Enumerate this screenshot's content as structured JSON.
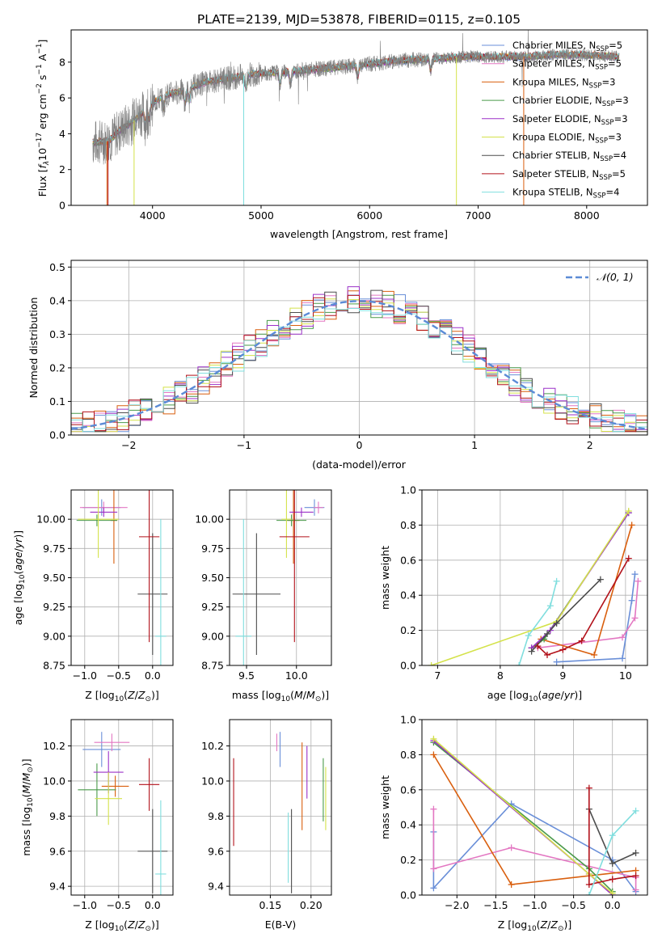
{
  "figure": {
    "title": "PLATE=2139, MJD=53878, FIBERID=0115, z=0.105"
  },
  "colors": {
    "Chabrier MILES": "#6a8fd8",
    "Salpeter MILES": "#e377c2",
    "Kroupa MILES": "#d95f0e",
    "Chabrier ELODIE": "#4a9a4a",
    "Salpeter ELODIE": "#9b30c8",
    "Kroupa ELODIE": "#d4e24a",
    "Chabrier STELIB": "#4d4d4d",
    "Salpeter STELIB": "#b2111a",
    "Kroupa STELIB": "#80dede",
    "data": "#808080",
    "normal": "#5b8bd6"
  },
  "chart_data": [
    {
      "id": "spectrum",
      "type": "line",
      "xlabel": "wavelength [Angstrom, rest frame]",
      "ylabel": "Flux [f_λ 10^-17 erg cm^-2 s^-1 A^-1]",
      "xlim": [
        3250,
        8560
      ],
      "ylim": [
        0,
        9.8
      ],
      "xticks": [
        4000,
        5000,
        6000,
        7000,
        8000
      ],
      "yticks": [
        0,
        2,
        4,
        6,
        8
      ],
      "grid": false,
      "legend_position": "top-right",
      "continuum": {
        "x": [
          3450,
          3600,
          3700,
          3800,
          3900,
          4000,
          4100,
          4200,
          4300,
          4400,
          4500,
          4700,
          4900,
          5100,
          5300,
          5500,
          5700,
          6000,
          6300,
          6600,
          6900,
          7100,
          7400,
          7700,
          8000,
          8300
        ],
        "y": [
          3.5,
          3.6,
          4.2,
          4.6,
          5.1,
          5.7,
          6.1,
          6.3,
          6.4,
          6.7,
          6.9,
          7.1,
          7.3,
          7.4,
          7.5,
          7.6,
          7.7,
          7.9,
          8.1,
          8.2,
          8.3,
          8.3,
          8.3,
          8.4,
          8.4,
          8.3
        ]
      },
      "series": [
        {
          "name": "Chabrier MILES, N_SSP=5"
        },
        {
          "name": "Salpeter MILES, N_SSP=5"
        },
        {
          "name": "Kroupa MILES, N_SSP=3"
        },
        {
          "name": "Chabrier ELODIE, N_SSP=3"
        },
        {
          "name": "Salpeter ELODIE, N_SSP=3"
        },
        {
          "name": "Kroupa ELODIE, N_SSP=3"
        },
        {
          "name": "Chabrier STELIB, N_SSP=4"
        },
        {
          "name": "Salpeter STELIB, N_SSP=5"
        },
        {
          "name": "Kroupa STELIB, N_SSP=4"
        }
      ],
      "legend_labels": [
        {
          "base": "Chabrier MILES, N",
          "sub": "SSP",
          "tail": "=5"
        },
        {
          "base": "Salpeter MILES, N",
          "sub": "SSP",
          "tail": "=5"
        },
        {
          "base": "Kroupa MILES, N",
          "sub": "SSP",
          "tail": "=3"
        },
        {
          "base": "Chabrier ELODIE, N",
          "sub": "SSP",
          "tail": "=3"
        },
        {
          "base": "Salpeter ELODIE, N",
          "sub": "SSP",
          "tail": "=3"
        },
        {
          "base": "Kroupa ELODIE, N",
          "sub": "SSP",
          "tail": "=3"
        },
        {
          "base": "Chabrier STELIB, N",
          "sub": "SSP",
          "tail": "=4"
        },
        {
          "base": "Salpeter STELIB, N",
          "sub": "SSP",
          "tail": "=5"
        },
        {
          "base": "Kroupa STELIB, N",
          "sub": "SSP",
          "tail": "=4"
        }
      ]
    },
    {
      "id": "residuals",
      "type": "histogram",
      "xlabel": "(data-model)/error",
      "ylabel": "Normed distribution",
      "xlim": [
        -2.5,
        2.5
      ],
      "ylim": [
        0,
        0.52
      ],
      "xticks": [
        -2,
        -1,
        0,
        1,
        2
      ],
      "yticks": [
        0.0,
        0.1,
        0.2,
        0.3,
        0.4,
        0.5
      ],
      "grid": true,
      "legend": "𝒩(0, 1)",
      "legend_position": "top-right",
      "bin_width": 0.1
    },
    {
      "id": "age_vs_Z",
      "type": "errorbar",
      "xlabel": "Z [log10(Z/Z⊙)]",
      "ylabel": "age [log10(age/yr)]",
      "xlim": [
        -1.2,
        0.3
      ],
      "ylim": [
        8.75,
        10.25
      ],
      "xticks": [
        -1.0,
        -0.5,
        0.0
      ],
      "yticks": [
        8.75,
        9.0,
        9.25,
        9.5,
        9.75,
        10.0
      ],
      "grid": true,
      "points": [
        {
          "label": "Chabrier MILES",
          "x": -0.75,
          "xerr": 0.28,
          "y": 10.1,
          "yerr": 0.07
        },
        {
          "label": "Salpeter MILES",
          "x": -0.72,
          "xerr": 0.35,
          "y": 10.1,
          "yerr": 0.05
        },
        {
          "label": "Kroupa MILES",
          "x": -0.57,
          "xerr": 0.05,
          "y": 9.99,
          "yerr": 0.37
        },
        {
          "label": "Chabrier ELODIE",
          "x": -0.82,
          "xerr": 0.3,
          "y": 9.99,
          "yerr": 0.05
        },
        {
          "label": "Salpeter ELODIE",
          "x": -0.72,
          "xerr": 0.2,
          "y": 10.06,
          "yerr": 0.04
        },
        {
          "label": "Kroupa ELODIE",
          "x": -0.8,
          "xerr": 0.3,
          "y": 10.0,
          "yerr": 0.33
        },
        {
          "label": "Chabrier STELIB",
          "x": 0.0,
          "xerr": 0.22,
          "y": 9.36,
          "yerr": 0.52
        },
        {
          "label": "Salpeter STELIB",
          "x": -0.05,
          "xerr": 0.15,
          "y": 9.85,
          "yerr": 0.9
        },
        {
          "label": "Kroupa STELIB",
          "x": 0.12,
          "xerr": 0.08,
          "y": 9.0,
          "yerr": 1.0
        }
      ]
    },
    {
      "id": "age_vs_mass",
      "type": "errorbar",
      "xlabel": "mass [log10(M/M⊙)]",
      "ylabel": "",
      "xlim": [
        9.33,
        10.35
      ],
      "ylim": [
        8.75,
        10.25
      ],
      "xticks": [
        9.5,
        10.0
      ],
      "yticks": [
        8.75,
        9.0,
        9.25,
        9.5,
        9.75,
        10.0
      ],
      "grid": true,
      "points": [
        {
          "label": "Chabrier MILES",
          "x": 10.18,
          "xerr": 0.1,
          "y": 10.1,
          "yerr": 0.07
        },
        {
          "label": "Salpeter MILES",
          "x": 10.22,
          "xerr": 0.05,
          "y": 10.1,
          "yerr": 0.05
        },
        {
          "label": "Kroupa MILES",
          "x": 9.97,
          "xerr": 0.06,
          "y": 9.99,
          "yerr": 0.37
        },
        {
          "label": "Chabrier ELODIE",
          "x": 9.95,
          "xerr": 0.15,
          "y": 9.99,
          "yerr": 0.05
        },
        {
          "label": "Salpeter ELODIE",
          "x": 10.05,
          "xerr": 0.12,
          "y": 10.06,
          "yerr": 0.04
        },
        {
          "label": "Kroupa ELODIE",
          "x": 9.9,
          "xerr": 0.05,
          "y": 10.0,
          "yerr": 0.33
        },
        {
          "label": "Chabrier STELIB",
          "x": 9.6,
          "xerr": 0.24,
          "y": 9.36,
          "yerr": 0.52
        },
        {
          "label": "Salpeter STELIB",
          "x": 9.98,
          "xerr": 0.15,
          "y": 9.85,
          "yerr": 0.9
        },
        {
          "label": "Kroupa STELIB",
          "x": 9.47,
          "xerr": 0.08,
          "y": 9.0,
          "yerr": 1.0
        }
      ]
    },
    {
      "id": "weights_vs_age",
      "type": "line",
      "xlabel": "age [log10(age/yr)]",
      "ylabel": "mass weight",
      "xlim": [
        6.75,
        10.35
      ],
      "ylim": [
        0,
        1.0
      ],
      "xticks": [
        7,
        8,
        9,
        10
      ],
      "yticks": [
        0.0,
        0.2,
        0.4,
        0.6,
        0.8,
        1.0
      ],
      "grid": true,
      "series": [
        {
          "name": "Chabrier MILES",
          "x": [
            8.9,
            9.95,
            10.1,
            10.15
          ],
          "y": [
            0.02,
            0.04,
            0.37,
            0.52
          ]
        },
        {
          "name": "Salpeter MILES",
          "x": [
            8.6,
            9.95,
            10.15,
            10.2
          ],
          "y": [
            0.1,
            0.16,
            0.27,
            0.48
          ]
        },
        {
          "name": "Kroupa MILES",
          "x": [
            8.65,
            9.5,
            10.1
          ],
          "y": [
            0.15,
            0.06,
            0.8
          ]
        },
        {
          "name": "Chabrier ELODIE",
          "x": [
            8.5,
            8.7,
            10.05
          ],
          "y": [
            0.1,
            0.15,
            0.87
          ]
        },
        {
          "name": "Salpeter ELODIE",
          "x": [
            8.5,
            8.8,
            10.05
          ],
          "y": [
            0.1,
            0.2,
            0.87
          ]
        },
        {
          "name": "Kroupa ELODIE",
          "x": [
            6.9,
            8.9,
            10.05
          ],
          "y": [
            0.0,
            0.25,
            0.88
          ]
        },
        {
          "name": "Chabrier STELIB",
          "x": [
            8.5,
            8.75,
            8.9,
            9.6
          ],
          "y": [
            0.08,
            0.18,
            0.24,
            0.49
          ]
        },
        {
          "name": "Salpeter STELIB",
          "x": [
            8.6,
            8.75,
            9.0,
            9.3,
            10.05
          ],
          "y": [
            0.11,
            0.06,
            0.09,
            0.14,
            0.61
          ]
        },
        {
          "name": "Kroupa STELIB",
          "x": [
            8.3,
            8.45,
            8.8,
            8.9
          ],
          "y": [
            0.0,
            0.17,
            0.34,
            0.48
          ]
        }
      ]
    },
    {
      "id": "mass_vs_Z",
      "type": "errorbar",
      "xlabel": "Z [log10(Z/Z⊙)]",
      "ylabel": "mass [log10(M/M⊙)]",
      "xlim": [
        -1.2,
        0.3
      ],
      "ylim": [
        9.35,
        10.35
      ],
      "xticks": [
        -1.0,
        -0.5,
        0.0
      ],
      "yticks": [
        9.4,
        9.6,
        9.8,
        10.0,
        10.2
      ],
      "grid": true,
      "points": [
        {
          "label": "Chabrier MILES",
          "x": -0.75,
          "xerr": 0.28,
          "y": 10.18,
          "yerr": 0.1
        },
        {
          "label": "Salpeter MILES",
          "x": -0.6,
          "xerr": 0.26,
          "y": 10.22,
          "yerr": 0.05
        },
        {
          "label": "Kroupa MILES",
          "x": -0.55,
          "xerr": 0.2,
          "y": 9.97,
          "yerr": 0.06
        },
        {
          "label": "Chabrier ELODIE",
          "x": -0.82,
          "xerr": 0.28,
          "y": 9.95,
          "yerr": 0.15
        },
        {
          "label": "Salpeter ELODIE",
          "x": -0.65,
          "xerr": 0.22,
          "y": 10.05,
          "yerr": 0.12
        },
        {
          "label": "Kroupa ELODIE",
          "x": -0.65,
          "xerr": 0.2,
          "y": 9.9,
          "yerr": 0.15
        },
        {
          "label": "Chabrier STELIB",
          "x": 0.0,
          "xerr": 0.22,
          "y": 9.6,
          "yerr": 0.24
        },
        {
          "label": "Salpeter STELIB",
          "x": -0.05,
          "xerr": 0.15,
          "y": 9.98,
          "yerr": 0.15
        },
        {
          "label": "Kroupa STELIB",
          "x": 0.12,
          "xerr": 0.08,
          "y": 9.47,
          "yerr": 0.42
        }
      ]
    },
    {
      "id": "mass_vs_ebv",
      "type": "errorbar",
      "xlabel": "E(B-V)",
      "ylabel": "",
      "xlim": [
        0.1,
        0.225
      ],
      "ylim": [
        9.35,
        10.35
      ],
      "xticks": [
        0.15,
        0.2
      ],
      "yticks": [
        9.4,
        9.6,
        9.8,
        10.0,
        10.2
      ],
      "grid": true,
      "points": [
        {
          "label": "Chabrier MILES",
          "x": 0.162,
          "y": 10.18,
          "yerr": 0.1
        },
        {
          "label": "Salpeter MILES",
          "x": 0.158,
          "y": 10.22,
          "yerr": 0.05
        },
        {
          "label": "Kroupa MILES",
          "x": 0.189,
          "y": 9.97,
          "yerr": 0.25
        },
        {
          "label": "Chabrier ELODIE",
          "x": 0.215,
          "y": 9.95,
          "yerr": 0.18
        },
        {
          "label": "Salpeter ELODIE",
          "x": 0.195,
          "y": 10.05,
          "yerr": 0.15
        },
        {
          "label": "Kroupa ELODIE",
          "x": 0.218,
          "y": 9.9,
          "yerr": 0.18
        },
        {
          "label": "Chabrier STELIB",
          "x": 0.176,
          "y": 9.6,
          "yerr": 0.24
        },
        {
          "label": "Salpeter STELIB",
          "x": 0.105,
          "y": 9.88,
          "yerr": 0.25
        },
        {
          "label": "Kroupa STELIB",
          "x": 0.172,
          "y": 9.62,
          "yerr": 0.2
        }
      ]
    },
    {
      "id": "weights_vs_Z",
      "type": "line",
      "xlabel": "Z [log10(Z/Z⊙)]",
      "ylabel": "mass weight",
      "xlim": [
        -2.45,
        0.45
      ],
      "ylim": [
        0,
        1.0
      ],
      "xticks": [
        -2.0,
        -1.5,
        -1.0,
        -0.5,
        0.0
      ],
      "yticks": [
        0.0,
        0.2,
        0.4,
        0.6,
        0.8,
        1.0
      ],
      "grid": true,
      "series": [
        {
          "name": "Chabrier MILES",
          "x": [
            -2.3,
            -2.3,
            -1.3,
            0.0,
            0.3
          ],
          "y": [
            0.36,
            0.04,
            0.52,
            0.2,
            0.02
          ]
        },
        {
          "name": "Salpeter MILES",
          "x": [
            -2.3,
            -2.3,
            -1.3,
            0.3,
            0.3
          ],
          "y": [
            0.49,
            0.15,
            0.27,
            0.1,
            0.03
          ]
        },
        {
          "name": "Kroupa MILES",
          "x": [
            -2.3,
            -1.3,
            0.3
          ],
          "y": [
            0.8,
            0.06,
            0.14
          ]
        },
        {
          "name": "Chabrier ELODIE",
          "x": [
            -2.3,
            -0.3,
            0.0
          ],
          "y": [
            0.87,
            0.15,
            0.02
          ]
        },
        {
          "name": "Salpeter ELODIE",
          "x": [
            -2.3,
            -0.3,
            0.0
          ],
          "y": [
            0.88,
            0.12,
            0.0
          ]
        },
        {
          "name": "Kroupa ELODIE",
          "x": [
            -2.3,
            -0.3,
            0.0
          ],
          "y": [
            0.89,
            0.12,
            0.01
          ]
        },
        {
          "name": "Chabrier STELIB",
          "x": [
            -0.3,
            0.0,
            0.3
          ],
          "y": [
            0.49,
            0.18,
            0.24
          ]
        },
        {
          "name": "Salpeter STELIB",
          "x": [
            -0.3,
            -0.3,
            0.0,
            0.3
          ],
          "y": [
            0.61,
            0.06,
            0.09,
            0.11
          ]
        },
        {
          "name": "Kroupa STELIB",
          "x": [
            -0.3,
            0.0,
            0.3
          ],
          "y": [
            0.0,
            0.34,
            0.48
          ]
        }
      ]
    }
  ]
}
